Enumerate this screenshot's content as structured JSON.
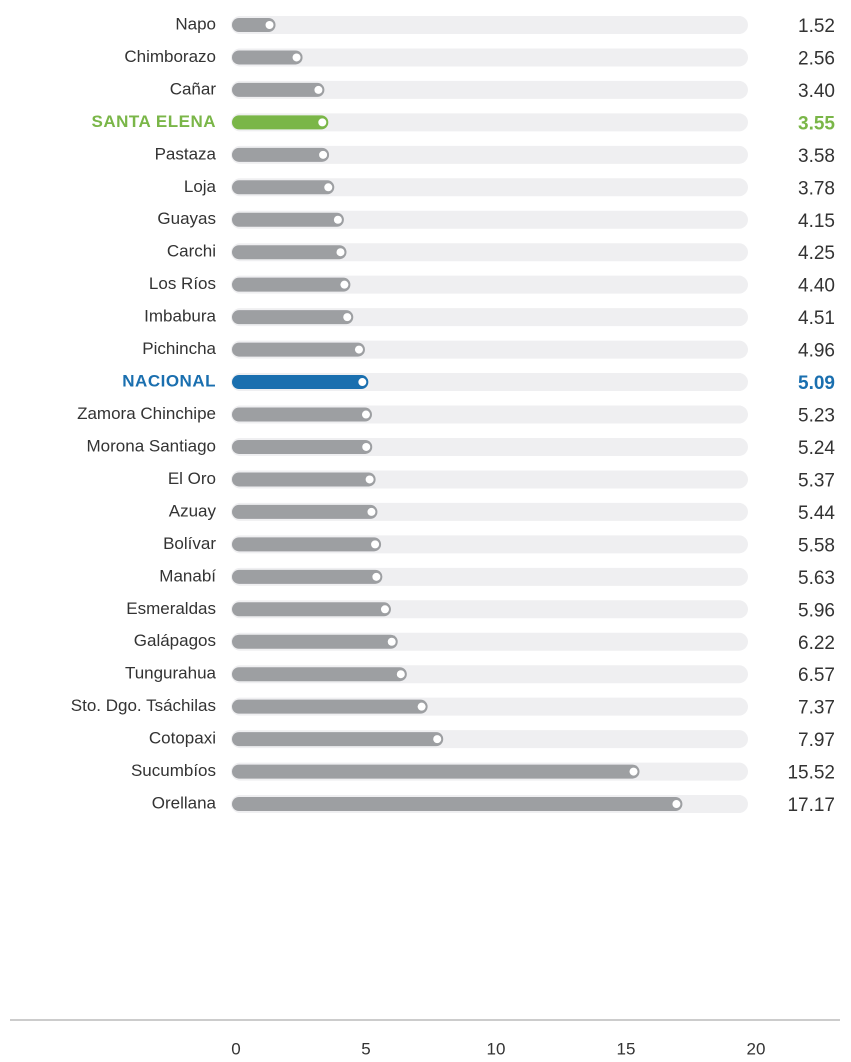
{
  "chart_data": {
    "type": "bar",
    "orientation": "horizontal",
    "categories": [
      "Napo",
      "Chimborazo",
      "Cañar",
      "SANTA ELENA",
      "Pastaza",
      "Loja",
      "Guayas",
      "Carchi",
      "Los Ríos",
      "Imbabura",
      "Pichincha",
      "NACIONAL",
      "Zamora Chinchipe",
      "Morona Santiago",
      "El Oro",
      "Azuay",
      "Bolívar",
      "Manabí",
      "Esmeraldas",
      "Galápagos",
      "Tungurahua",
      "Sto. Dgo. Tsáchilas",
      "Cotopaxi",
      "Sucumbíos",
      "Orellana"
    ],
    "values": [
      1.52,
      2.56,
      3.4,
      3.55,
      3.58,
      3.78,
      4.15,
      4.25,
      4.4,
      4.51,
      4.96,
      5.09,
      5.23,
      5.24,
      5.37,
      5.44,
      5.58,
      5.63,
      5.96,
      6.22,
      6.57,
      7.37,
      7.97,
      15.52,
      17.17
    ],
    "value_labels": [
      "1.52",
      "2.56",
      "3.40",
      "3.55",
      "3.58",
      "3.78",
      "4.15",
      "4.25",
      "4.40",
      "4.51",
      "4.96",
      "5.09",
      "5.23",
      "5.24",
      "5.37",
      "5.44",
      "5.58",
      "5.63",
      "5.96",
      "6.22",
      "6.57",
      "7.37",
      "7.97",
      "15.52",
      "17.17"
    ],
    "colors": [
      "#9d9fa2",
      "#9d9fa2",
      "#9d9fa2",
      "#7ab648",
      "#9d9fa2",
      "#9d9fa2",
      "#9d9fa2",
      "#9d9fa2",
      "#9d9fa2",
      "#9d9fa2",
      "#9d9fa2",
      "#1a6faf",
      "#9d9fa2",
      "#9d9fa2",
      "#9d9fa2",
      "#9d9fa2",
      "#9d9fa2",
      "#9d9fa2",
      "#9d9fa2",
      "#9d9fa2",
      "#9d9fa2",
      "#9d9fa2",
      "#9d9fa2",
      "#9d9fa2",
      "#9d9fa2"
    ],
    "xlim": [
      0,
      20
    ],
    "xticks": [
      0,
      5,
      10,
      15,
      20
    ],
    "grid": false
  }
}
